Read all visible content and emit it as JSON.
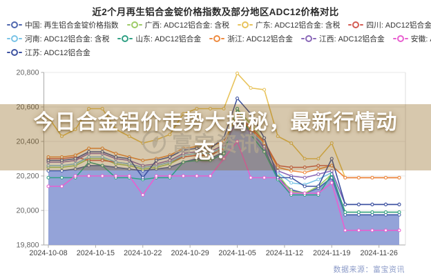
{
  "title": "近2个月再生铝合金锭价格指数及部分地区ADC12价格对比",
  "banner": {
    "line1": "今日合金铝价走势大揭秘，最新行情动",
    "line2": "态！"
  },
  "watermark": {
    "text": "富宝资讯"
  },
  "footer": {
    "source": "数据来源：富宝资讯"
  },
  "legend": {
    "rows": [
      [
        {
          "label": "中国: 再生铝合金锭价格指数",
          "color": "#4e66ae"
        },
        {
          "label": "广西: ADC12铝合金: 含税",
          "color": "#9dcb66"
        },
        {
          "label": "广东: ADC12铝合金: 含税",
          "color": "#e8c35b"
        },
        {
          "label": "四川: ADC12铝合金",
          "color": "#d35b52"
        }
      ],
      [
        {
          "label": "河南: ADC12铝合金: 含税",
          "color": "#79c3e6"
        },
        {
          "label": "山东: ADC12铝合金",
          "color": "#2fa084"
        },
        {
          "label": "浙江: ADC12铝合金",
          "color": "#ee8a3f"
        },
        {
          "label": "江西: ADC12铝合金",
          "color": "#8a68b8"
        },
        {
          "label": "安徽: ADC12铝合金: 含税",
          "color": "#e85fd0"
        }
      ],
      [
        {
          "label": "江苏: ADC12铝合金",
          "color": "#3d52a0"
        }
      ]
    ]
  },
  "chart_data": {
    "type": "line",
    "title": "近2个月再生铝合金锭价格指数及部分地区ADC12价格对比",
    "xlabel": "",
    "ylabel": "",
    "grid": true,
    "legend_position": "top",
    "x": [
      "2024-10-08",
      "2024-10-10",
      "2024-10-12",
      "2024-10-14",
      "2024-10-16",
      "2024-10-18",
      "2024-10-20",
      "2024-10-22",
      "2024-10-24",
      "2024-10-26",
      "2024-10-28",
      "2024-10-30",
      "2024-11-01",
      "2024-11-03",
      "2024-11-05",
      "2024-11-07",
      "2024-11-09",
      "2024-11-11",
      "2024-11-13",
      "2024-11-15",
      "2024-11-17",
      "2024-11-19",
      "2024-11-21",
      "2024-11-23",
      "2024-11-25",
      "2024-11-27",
      "2024-11-29"
    ],
    "x_axis_ticks": [
      "2024-10-08",
      "2024-10-15",
      "2024-10-22",
      "2024-10-29",
      "2024-11-05",
      "2024-11-12",
      "2024-11-19",
      "2024-11-26"
    ],
    "y_axis": {
      "min": 19800,
      "max": 20800,
      "tick_values": [
        19800,
        20000,
        20200,
        20400,
        20600,
        20800
      ],
      "tick_labels": [
        "19,800",
        "20,000",
        "20,200",
        "20,400",
        "20,600",
        "20,800"
      ]
    },
    "series": [
      {
        "name": "中国: 再生铝合金锭价格指数",
        "type": "area",
        "color": "#4e66ae",
        "fill": "#8e9ed6",
        "values": [
          20230,
          20230,
          20240,
          20260,
          20260,
          20250,
          20240,
          20230,
          20240,
          20250,
          20280,
          20300,
          20300,
          20340,
          20560,
          20480,
          20360,
          20190,
          20120,
          20100,
          20130,
          20190,
          19975,
          19975,
          19975,
          19975,
          19975
        ]
      },
      {
        "name": "广西: ADC12铝合金: 含税",
        "type": "line",
        "color": "#9dcb66",
        "values": [
          20250,
          20250,
          20260,
          20300,
          20300,
          20270,
          20260,
          20240,
          20250,
          20270,
          20310,
          20320,
          20320,
          20360,
          20590,
          20500,
          20400,
          20210,
          20110,
          20100,
          20140,
          20210,
          19990,
          19990,
          19990,
          19990,
          19990
        ]
      },
      {
        "name": "广东: ADC12铝合金: 含税",
        "type": "line",
        "color": "#e8c35b",
        "values": [
          20540,
          20430,
          20470,
          20590,
          20590,
          20470,
          20430,
          20390,
          20410,
          20440,
          20560,
          20590,
          20590,
          20590,
          20795,
          20710,
          20700,
          20430,
          20390,
          20300,
          20300,
          20390,
          20190,
          20190,
          20190,
          20190,
          20190
        ]
      },
      {
        "name": "四川: ADC12铝合金",
        "type": "line",
        "color": "#d35b52",
        "values": [
          20300,
          20300,
          20310,
          20290,
          20290,
          20280,
          20270,
          20250,
          20260,
          20280,
          20310,
          20320,
          20320,
          20360,
          20560,
          20480,
          20400,
          20260,
          20250,
          20250,
          20260,
          20260,
          20190,
          20190,
          20190,
          20190,
          20190
        ]
      },
      {
        "name": "河南: ADC12铝合金: 含税",
        "type": "line",
        "color": "#79c3e6",
        "values": [
          20260,
          20260,
          20270,
          20310,
          20310,
          20280,
          20270,
          20250,
          20260,
          20280,
          20320,
          20330,
          20330,
          20370,
          20540,
          20460,
          20380,
          20220,
          20160,
          20150,
          20180,
          20220,
          20035,
          20035,
          20035,
          20035,
          20035
        ]
      },
      {
        "name": "山东: ADC12铝合金",
        "type": "line",
        "color": "#2fa084",
        "values": [
          20190,
          20190,
          20190,
          20280,
          20260,
          20190,
          20190,
          20180,
          20190,
          20190,
          20280,
          20290,
          20290,
          20330,
          20590,
          20440,
          20340,
          20180,
          20090,
          20090,
          20090,
          20210,
          19990,
          19990,
          19990,
          19990,
          19990
        ]
      },
      {
        "name": "浙江: ADC12铝合金",
        "type": "line",
        "color": "#ee8a3f",
        "values": [
          20310,
          20310,
          20320,
          20360,
          20360,
          20330,
          20310,
          20290,
          20300,
          20320,
          20360,
          20370,
          20370,
          20400,
          20550,
          20470,
          20390,
          20250,
          20230,
          20220,
          20240,
          20260,
          20190,
          20190,
          20190,
          20190,
          20190
        ]
      },
      {
        "name": "江西: ADC12铝合金",
        "type": "line",
        "color": "#8a68b8",
        "values": [
          20280,
          20280,
          20290,
          20330,
          20330,
          20300,
          20290,
          20260,
          20270,
          20290,
          20330,
          20340,
          20340,
          20380,
          20520,
          20450,
          20370,
          20230,
          20200,
          20190,
          20210,
          20230,
          20035,
          20035,
          20035,
          20035,
          20035
        ]
      },
      {
        "name": "安徽: ADC12铝合金: 含税",
        "type": "line",
        "color": "#e85fd0",
        "values": [
          20140,
          20140,
          20200,
          20200,
          20200,
          20200,
          20200,
          20090,
          20200,
          20200,
          20200,
          20200,
          20200,
          20300,
          20400,
          20190,
          20190,
          20190,
          20100,
          20100,
          20100,
          20160,
          19885,
          19885,
          19885,
          19885,
          19885
        ]
      },
      {
        "name": "江苏: ADC12铝合金",
        "type": "line",
        "color": "#3d52a0",
        "values": [
          20290,
          20290,
          20300,
          20340,
          20340,
          20310,
          20300,
          20190,
          20290,
          20310,
          20350,
          20360,
          20360,
          20420,
          20650,
          20560,
          20420,
          20190,
          20190,
          20140,
          20140,
          20300,
          20035,
          20035,
          20035,
          20035,
          20035
        ]
      }
    ]
  }
}
